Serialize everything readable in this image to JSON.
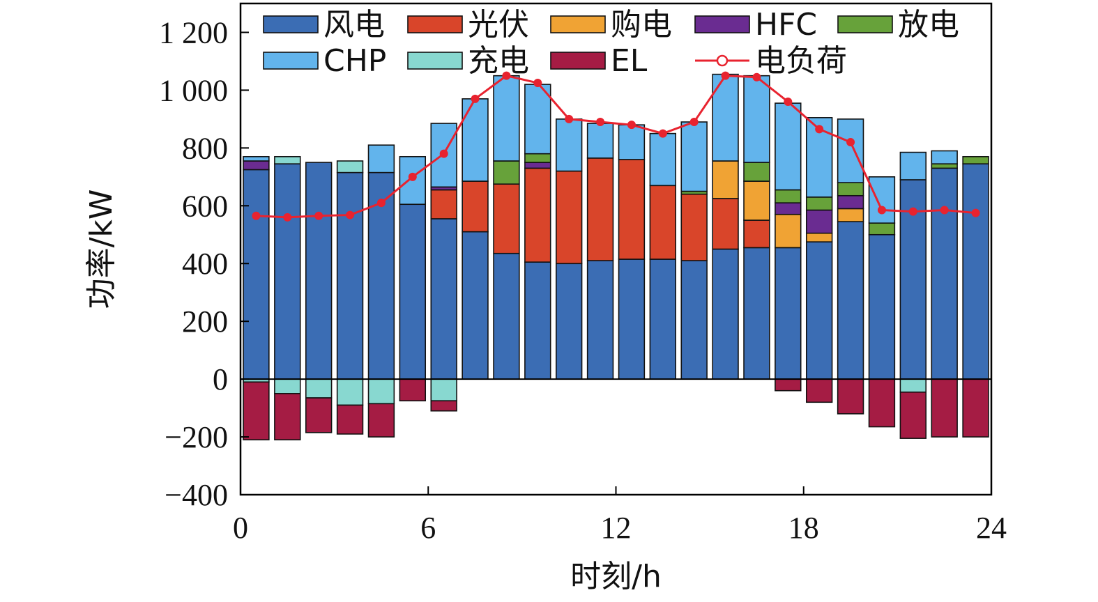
{
  "chart_data": {
    "type": "bar",
    "stacked": true,
    "xlabel": "时刻/h",
    "ylabel": "功率/kW",
    "xlim": [
      0,
      24
    ],
    "ylim": [
      -400,
      1300
    ],
    "xticks": [
      0,
      6,
      12,
      18,
      24
    ],
    "yticks": [
      -400,
      -200,
      0,
      200,
      400,
      600,
      800,
      1000,
      1200
    ],
    "ytick_labels": [
      "−400",
      "−200",
      "0",
      "200",
      "400",
      "600",
      "800",
      "1 000",
      "1 200"
    ],
    "grid": false,
    "legend": "top, inside",
    "x": [
      1,
      2,
      3,
      4,
      5,
      6,
      7,
      8,
      9,
      10,
      11,
      12,
      13,
      14,
      15,
      16,
      17,
      18,
      19,
      20,
      21,
      22,
      23,
      24
    ],
    "series": [
      {
        "name": "风电",
        "color": "#3b6db4",
        "values": [
          725,
          745,
          750,
          715,
          715,
          605,
          555,
          510,
          435,
          405,
          400,
          410,
          415,
          415,
          410,
          450,
          455,
          455,
          475,
          545,
          500,
          690,
          730,
          745
        ]
      },
      {
        "name": "光伏",
        "color": "#d9452a",
        "values": [
          0,
          0,
          0,
          0,
          0,
          0,
          100,
          175,
          240,
          325,
          320,
          355,
          345,
          255,
          230,
          175,
          95,
          0,
          0,
          0,
          0,
          0,
          0,
          0
        ]
      },
      {
        "name": "购电",
        "color": "#f0a334",
        "values": [
          0,
          0,
          0,
          0,
          0,
          0,
          0,
          0,
          0,
          0,
          0,
          0,
          0,
          0,
          0,
          130,
          135,
          115,
          30,
          45,
          0,
          0,
          0,
          0
        ]
      },
      {
        "name": "HFC",
        "color": "#6a2c91",
        "values": [
          30,
          0,
          0,
          0,
          0,
          0,
          10,
          0,
          0,
          20,
          0,
          0,
          0,
          0,
          0,
          0,
          0,
          40,
          80,
          45,
          0,
          0,
          0,
          0
        ]
      },
      {
        "name": "放电",
        "color": "#67a23a",
        "values": [
          0,
          0,
          0,
          0,
          0,
          0,
          0,
          0,
          80,
          30,
          0,
          0,
          0,
          0,
          10,
          0,
          65,
          45,
          45,
          45,
          40,
          0,
          15,
          25
        ]
      },
      {
        "name": "CHP",
        "color": "#62b4ec",
        "values": [
          15,
          0,
          0,
          0,
          95,
          165,
          220,
          285,
          295,
          240,
          180,
          120,
          120,
          180,
          240,
          300,
          300,
          300,
          275,
          220,
          160,
          95,
          45,
          0
        ]
      },
      {
        "name": "充电",
        "color": "#88d8d0",
        "values": [
          0,
          25,
          0,
          40,
          0,
          0,
          0,
          0,
          0,
          0,
          0,
          0,
          0,
          0,
          0,
          0,
          0,
          0,
          0,
          0,
          0,
          0,
          0,
          0
        ]
      },
      {
        "name": "EL",
        "color": "#a51c44",
        "values": [
          0,
          0,
          0,
          0,
          0,
          0,
          0,
          0,
          0,
          0,
          0,
          0,
          0,
          0,
          0,
          0,
          0,
          0,
          0,
          0,
          0,
          0,
          0,
          0
        ]
      },
      {
        "name": "充电",
        "color": "#88d8d0",
        "values": [
          -10,
          -50,
          -65,
          -90,
          -85,
          0,
          -75,
          0,
          0,
          0,
          0,
          0,
          0,
          0,
          0,
          0,
          0,
          0,
          0,
          0,
          0,
          -45,
          0,
          0
        ]
      },
      {
        "name": "EL",
        "color": "#a51c44",
        "values": [
          -200,
          -160,
          -120,
          -100,
          -115,
          -75,
          -35,
          0,
          0,
          0,
          0,
          0,
          0,
          0,
          0,
          0,
          0,
          -40,
          -80,
          -120,
          -165,
          -160,
          -200,
          -200
        ]
      }
    ],
    "load": {
      "name": "电负荷",
      "color": "#e8232f",
      "values": [
        565,
        560,
        565,
        568,
        610,
        700,
        780,
        970,
        1050,
        1025,
        900,
        890,
        880,
        850,
        890,
        1050,
        1045,
        960,
        865,
        820,
        585,
        580,
        585,
        575
      ]
    },
    "legend_entries": [
      {
        "name": "风电",
        "color": "#3b6db4",
        "kind": "box"
      },
      {
        "name": "光伏",
        "color": "#d9452a",
        "kind": "box"
      },
      {
        "name": "购电",
        "color": "#f0a334",
        "kind": "box"
      },
      {
        "name": "HFC",
        "color": "#6a2c91",
        "kind": "box"
      },
      {
        "name": "放电",
        "color": "#67a23a",
        "kind": "box"
      },
      {
        "name": "CHP",
        "color": "#62b4ec",
        "kind": "box"
      },
      {
        "name": "充电",
        "color": "#88d8d0",
        "kind": "box"
      },
      {
        "name": "EL",
        "color": "#a51c44",
        "kind": "box"
      },
      {
        "name": "电负荷",
        "color": "#e8232f",
        "kind": "line"
      }
    ]
  }
}
